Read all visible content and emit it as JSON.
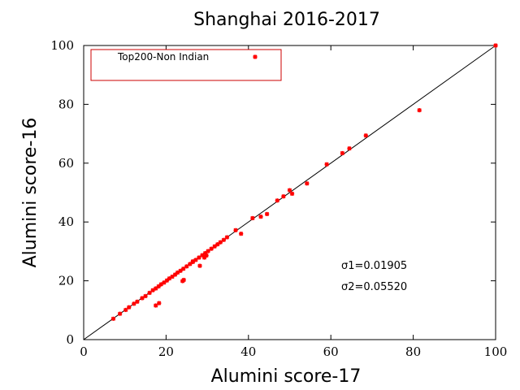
{
  "chart_data": {
    "type": "scatter",
    "title": "Shanghai 2016-2017",
    "xlabel": "Alumini score-17",
    "ylabel": "Alumini score-16",
    "xlim": [
      0,
      100
    ],
    "ylim": [
      0,
      100
    ],
    "xticks": [
      "0",
      "20",
      "40",
      "60",
      "80",
      "100"
    ],
    "yticks": [
      "0",
      "20",
      "40",
      "60",
      "80",
      "100"
    ],
    "grid": false,
    "legend_position": "top-left",
    "reference_line": {
      "from": [
        0,
        0
      ],
      "to": [
        100,
        100
      ],
      "color": "#000000"
    },
    "series": [
      {
        "name": "Top200-Non Indian",
        "color": "#ff0000",
        "marker": "star",
        "points": [
          [
            7.2,
            7.1
          ],
          [
            8.8,
            8.8
          ],
          [
            10.2,
            10.1
          ],
          [
            11.0,
            11.0
          ],
          [
            12.2,
            12.2
          ],
          [
            13.0,
            12.9
          ],
          [
            14.2,
            14.1
          ],
          [
            15.0,
            14.8
          ],
          [
            16.0,
            15.9
          ],
          [
            16.8,
            16.8
          ],
          [
            17.5,
            17.4
          ],
          [
            18.2,
            18.1
          ],
          [
            18.8,
            18.8
          ],
          [
            19.5,
            19.4
          ],
          [
            20.2,
            20.1
          ],
          [
            20.8,
            20.8
          ],
          [
            21.5,
            21.4
          ],
          [
            22.2,
            22.1
          ],
          [
            22.8,
            22.8
          ],
          [
            23.5,
            23.4
          ],
          [
            24.2,
            24.1
          ],
          [
            25.0,
            24.9
          ],
          [
            25.8,
            25.7
          ],
          [
            26.5,
            26.4
          ],
          [
            27.2,
            27.1
          ],
          [
            28.0,
            27.9
          ],
          [
            28.8,
            28.7
          ],
          [
            29.5,
            29.4
          ],
          [
            30.2,
            30.1
          ],
          [
            31.0,
            30.9
          ],
          [
            31.8,
            31.7
          ],
          [
            32.5,
            32.4
          ],
          [
            33.2,
            33.1
          ],
          [
            34.0,
            33.9
          ],
          [
            34.8,
            34.8
          ],
          [
            36.9,
            37.2
          ],
          [
            38.2,
            36.0
          ],
          [
            41.0,
            41.3
          ],
          [
            43.0,
            41.8
          ],
          [
            44.5,
            42.7
          ],
          [
            47.0,
            47.3
          ],
          [
            48.5,
            48.7
          ],
          [
            50.0,
            50.8
          ],
          [
            50.6,
            49.6
          ],
          [
            54.2,
            53.1
          ],
          [
            59.0,
            59.6
          ],
          [
            62.8,
            63.4
          ],
          [
            64.5,
            65.0
          ],
          [
            68.5,
            69.4
          ],
          [
            81.5,
            78.0
          ],
          [
            100.0,
            100.0
          ],
          [
            17.5,
            11.6
          ],
          [
            18.3,
            12.4
          ],
          [
            24.0,
            19.9
          ],
          [
            24.3,
            20.3
          ],
          [
            28.2,
            25.1
          ],
          [
            29.3,
            27.9
          ],
          [
            29.8,
            28.6
          ],
          [
            26.5,
            26.6
          ]
        ]
      }
    ],
    "annotations": [
      "σ1=0.01905",
      "σ2=0.05520"
    ]
  }
}
